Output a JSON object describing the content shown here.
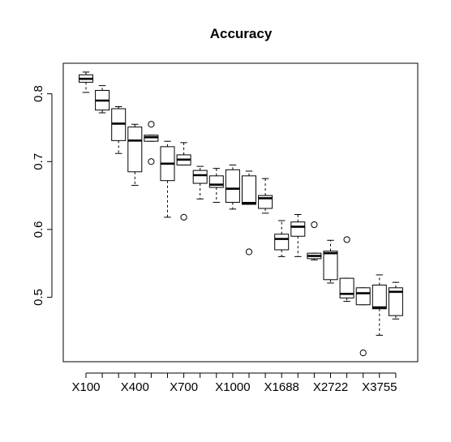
{
  "chart_data": {
    "type": "boxplot",
    "title": "Accuracy",
    "xlabel": "",
    "ylabel": "",
    "ylim": [
      0.405,
      0.845
    ],
    "yticks": [
      0.5,
      0.6,
      0.7,
      0.8
    ],
    "ytick_labels": [
      "0.5",
      "0.6",
      "0.7",
      "0.8"
    ],
    "x_tick_labels_shown": [
      "X100",
      "X400",
      "X700",
      "X1000",
      "X1688",
      "X2722",
      "X3755"
    ],
    "grid": false,
    "boxes": [
      {
        "pos": 1,
        "whisker_low": 0.802,
        "q1": 0.817,
        "median": 0.822,
        "q3": 0.828,
        "whisker_high": 0.832,
        "outliers": []
      },
      {
        "pos": 2,
        "whisker_low": 0.772,
        "q1": 0.776,
        "median": 0.79,
        "q3": 0.805,
        "whisker_high": 0.812,
        "outliers": []
      },
      {
        "pos": 3,
        "whisker_low": 0.712,
        "q1": 0.731,
        "median": 0.756,
        "q3": 0.778,
        "whisker_high": 0.781,
        "outliers": []
      },
      {
        "pos": 4,
        "whisker_low": 0.665,
        "q1": 0.685,
        "median": 0.731,
        "q3": 0.751,
        "whisker_high": 0.755,
        "outliers": []
      },
      {
        "pos": 5,
        "whisker_low": 0.73,
        "q1": 0.73,
        "median": 0.736,
        "q3": 0.739,
        "whisker_high": 0.739,
        "outliers": [
          0.755,
          0.7
        ]
      },
      {
        "pos": 6,
        "whisker_low": 0.618,
        "q1": 0.672,
        "median": 0.697,
        "q3": 0.722,
        "whisker_high": 0.73,
        "outliers": []
      },
      {
        "pos": 7,
        "whisker_low": 0.695,
        "q1": 0.695,
        "median": 0.703,
        "q3": 0.71,
        "whisker_high": 0.728,
        "outliers": [
          0.618
        ]
      },
      {
        "pos": 8,
        "whisker_low": 0.645,
        "q1": 0.668,
        "median": 0.68,
        "q3": 0.687,
        "whisker_high": 0.693,
        "outliers": []
      },
      {
        "pos": 9,
        "whisker_low": 0.64,
        "q1": 0.662,
        "median": 0.666,
        "q3": 0.679,
        "whisker_high": 0.69,
        "outliers": []
      },
      {
        "pos": 10,
        "whisker_low": 0.63,
        "q1": 0.64,
        "median": 0.66,
        "q3": 0.688,
        "whisker_high": 0.695,
        "outliers": []
      },
      {
        "pos": 11,
        "whisker_low": 0.637,
        "q1": 0.637,
        "median": 0.639,
        "q3": 0.679,
        "whisker_high": 0.686,
        "outliers": [
          0.567
        ]
      },
      {
        "pos": 12,
        "whisker_low": 0.624,
        "q1": 0.631,
        "median": 0.646,
        "q3": 0.65,
        "whisker_high": 0.675,
        "outliers": []
      },
      {
        "pos": 13,
        "whisker_low": 0.56,
        "q1": 0.57,
        "median": 0.586,
        "q3": 0.593,
        "whisker_high": 0.613,
        "outliers": []
      },
      {
        "pos": 14,
        "whisker_low": 0.56,
        "q1": 0.59,
        "median": 0.604,
        "q3": 0.611,
        "whisker_high": 0.622,
        "outliers": []
      },
      {
        "pos": 15,
        "whisker_low": 0.555,
        "q1": 0.557,
        "median": 0.561,
        "q3": 0.565,
        "whisker_high": 0.565,
        "outliers": [
          0.607
        ]
      },
      {
        "pos": 16,
        "whisker_low": 0.521,
        "q1": 0.526,
        "median": 0.565,
        "q3": 0.568,
        "whisker_high": 0.584,
        "outliers": []
      },
      {
        "pos": 17,
        "whisker_low": 0.494,
        "q1": 0.499,
        "median": 0.505,
        "q3": 0.528,
        "whisker_high": 0.528,
        "outliers": [
          0.585
        ]
      },
      {
        "pos": 18,
        "whisker_low": 0.489,
        "q1": 0.489,
        "median": 0.506,
        "q3": 0.514,
        "whisker_high": 0.514,
        "outliers": [
          0.418
        ]
      },
      {
        "pos": 19,
        "whisker_low": 0.444,
        "q1": 0.483,
        "median": 0.485,
        "q3": 0.518,
        "whisker_high": 0.533,
        "outliers": []
      },
      {
        "pos": 20,
        "whisker_low": 0.468,
        "q1": 0.473,
        "median": 0.508,
        "q3": 0.514,
        "whisker_high": 0.522,
        "outliers": []
      }
    ]
  }
}
